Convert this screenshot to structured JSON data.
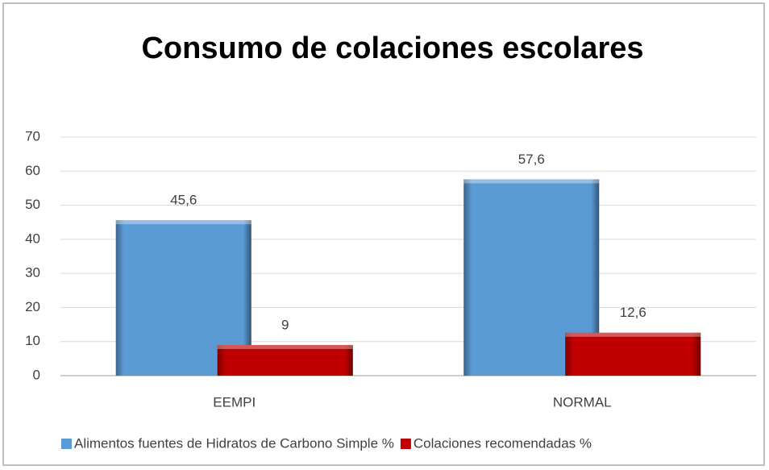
{
  "chart_data": {
    "type": "bar",
    "title": "Consumo de colaciones escolares",
    "categories": [
      "EEMPI",
      "NORMAL"
    ],
    "series": [
      {
        "name": "Alimentos fuentes de Hidratos de Carbono Simple %",
        "color": "#5b9bd5",
        "values": [
          45.6,
          57.6
        ],
        "value_labels": [
          "45,6",
          "57,6"
        ]
      },
      {
        "name": "Colaciones recomendadas %",
        "color": "#c00000",
        "values": [
          9,
          12.6
        ],
        "value_labels": [
          "9",
          "12,6"
        ]
      }
    ],
    "ylim": [
      0,
      70
    ],
    "yticks": [
      0,
      10,
      20,
      30,
      40,
      50,
      60,
      70
    ],
    "grid": true,
    "legend": "bottom"
  }
}
